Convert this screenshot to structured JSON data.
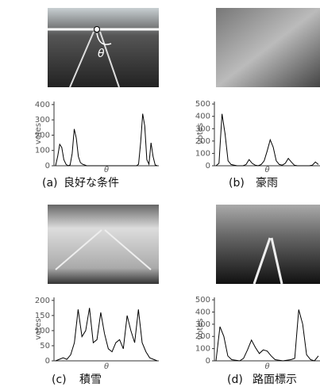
{
  "chart_data": [
    {
      "type": "line",
      "label": "(a)",
      "caption": "良好な条件",
      "image_annotation": "θ",
      "xlabel": "θ",
      "ylabel": "votes",
      "color": "#000000",
      "values": [
        0,
        60,
        140,
        120,
        40,
        10,
        0,
        5,
        80,
        240,
        180,
        60,
        20,
        10,
        5,
        0,
        0,
        0,
        0,
        0,
        0,
        0,
        0,
        0,
        0,
        0,
        0,
        0,
        0,
        0,
        0,
        0,
        0,
        0,
        0,
        0,
        0,
        0,
        0,
        0,
        10,
        150,
        340,
        260,
        40,
        10,
        150,
        60,
        5,
        0
      ],
      "ylim": [
        0,
        420
      ],
      "yticks": [
        0,
        100,
        200,
        300,
        400
      ]
    },
    {
      "type": "line",
      "label": "(b)",
      "caption": "豪雨",
      "xlabel": "θ",
      "ylabel": "votes",
      "color": "#000000",
      "values": [
        0,
        20,
        420,
        260,
        40,
        10,
        5,
        0,
        0,
        0,
        10,
        50,
        20,
        5,
        0,
        10,
        40,
        120,
        210,
        150,
        40,
        10,
        5,
        20,
        60,
        30,
        5,
        0,
        0,
        0,
        0,
        0,
        5,
        30,
        10
      ],
      "ylim": [
        0,
        520
      ],
      "yticks": [
        0,
        100,
        200,
        300,
        400,
        500
      ]
    },
    {
      "type": "line",
      "label": "(c)",
      "caption": "積雪",
      "xlabel": "θ",
      "ylabel": "votes",
      "color": "#000000",
      "values": [
        0,
        5,
        10,
        5,
        20,
        60,
        170,
        80,
        100,
        175,
        60,
        70,
        160,
        90,
        40,
        30,
        60,
        70,
        40,
        150,
        100,
        60,
        170,
        60,
        30,
        10,
        5,
        0
      ],
      "ylim": [
        0,
        210
      ],
      "yticks": [
        0,
        50,
        100,
        150,
        200
      ]
    },
    {
      "type": "line",
      "label": "(d)",
      "caption": "路面標示",
      "xlabel": "θ",
      "ylabel": "votes",
      "color": "#000000",
      "values": [
        0,
        280,
        200,
        40,
        10,
        5,
        0,
        20,
        90,
        170,
        110,
        60,
        90,
        80,
        40,
        10,
        5,
        0,
        5,
        10,
        20,
        420,
        300,
        50,
        10,
        0,
        40
      ],
      "ylim": [
        0,
        520
      ],
      "yticks": [
        0,
        100,
        200,
        300,
        400,
        500
      ]
    }
  ]
}
